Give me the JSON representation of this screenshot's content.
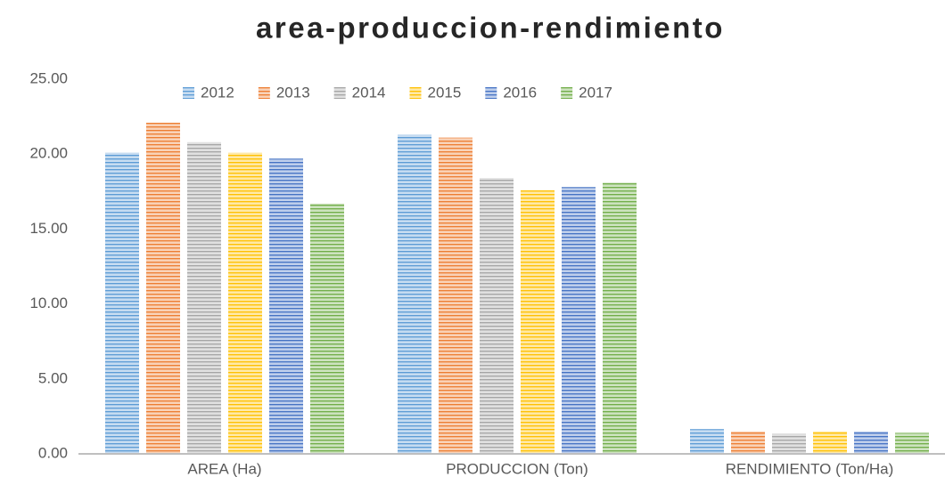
{
  "chart_data": {
    "type": "bar",
    "title": "area-produccion-rendimiento",
    "categories": [
      "AREA (Ha)",
      "PRODUCCION (Ton)",
      "RENDIMIENTO (Ton/Ha)"
    ],
    "series": [
      {
        "name": "2012",
        "color": "#5b9bd5",
        "values": [
          20.1,
          21.3,
          1.65
        ]
      },
      {
        "name": "2013",
        "color": "#ed7d31",
        "values": [
          22.1,
          21.1,
          1.5
        ]
      },
      {
        "name": "2014",
        "color": "#a5a5a5",
        "values": [
          20.8,
          18.4,
          1.35
        ]
      },
      {
        "name": "2015",
        "color": "#ffc000",
        "values": [
          20.1,
          17.6,
          1.5
        ]
      },
      {
        "name": "2016",
        "color": "#4472c4",
        "values": [
          19.7,
          17.8,
          1.5
        ]
      },
      {
        "name": "2017",
        "color": "#70ad47",
        "values": [
          16.7,
          18.1,
          1.4
        ]
      }
    ],
    "ylim": [
      0,
      25
    ],
    "yticks": [
      {
        "value": 0,
        "label": "0.00"
      },
      {
        "value": 5,
        "label": "5.00"
      },
      {
        "value": 10,
        "label": "10.00"
      },
      {
        "value": 15,
        "label": "15.00"
      },
      {
        "value": 20,
        "label": "20.00"
      },
      {
        "value": 25,
        "label": "25.00"
      }
    ],
    "grid": false,
    "legend": "top"
  }
}
